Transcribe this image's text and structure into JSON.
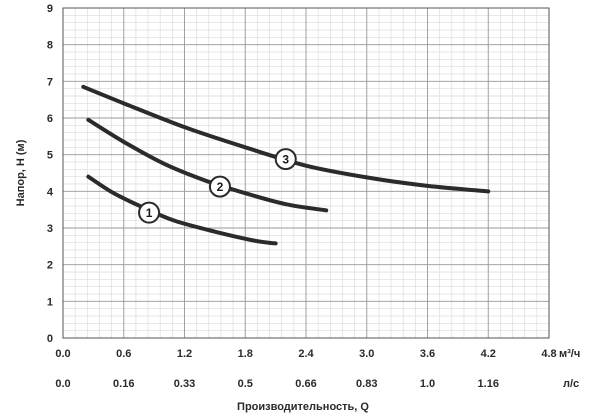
{
  "chart_data": {
    "type": "line",
    "ylabel": "Напор, H (м)",
    "xlabel": "Производительность, Q",
    "x_unit_primary": "м³/ч",
    "x_unit_secondary": "л/с",
    "xlim": [
      0,
      4.8
    ],
    "ylim": [
      0,
      9
    ],
    "x_ticks": [
      "0.0",
      "0.6",
      "1.2",
      "1.8",
      "2.4",
      "3.0",
      "3.6",
      "4.2",
      "4.8"
    ],
    "x_ticks_secondary": [
      {
        "x": 0,
        "label": "0.0"
      },
      {
        "x": 0.6,
        "label": "0.16"
      },
      {
        "x": 1.2,
        "label": "0.33"
      },
      {
        "x": 1.8,
        "label": "0.5"
      },
      {
        "x": 2.4,
        "label": "0.66"
      },
      {
        "x": 3.0,
        "label": "0.83"
      },
      {
        "x": 3.6,
        "label": "1.0"
      },
      {
        "x": 4.2,
        "label": "1.16"
      }
    ],
    "y_ticks": [
      "0",
      "1",
      "2",
      "3",
      "4",
      "5",
      "6",
      "7",
      "8",
      "9"
    ],
    "grid": true,
    "series": [
      {
        "name": "1",
        "x": [
          0.25,
          0.5,
          0.8,
          1.1,
          1.5,
          1.9,
          2.1
        ],
        "y": [
          4.4,
          3.95,
          3.55,
          3.2,
          2.9,
          2.65,
          2.58
        ],
        "marker_at": [
          0.85,
          3.42
        ]
      },
      {
        "name": "2",
        "x": [
          0.25,
          0.6,
          1.0,
          1.4,
          1.8,
          2.2,
          2.6
        ],
        "y": [
          5.95,
          5.35,
          4.75,
          4.3,
          3.95,
          3.65,
          3.48
        ],
        "marker_at": [
          1.55,
          4.13
        ]
      },
      {
        "name": "3",
        "x": [
          0.2,
          0.6,
          1.2,
          1.8,
          2.4,
          3.0,
          3.6,
          4.2
        ],
        "y": [
          6.85,
          6.4,
          5.75,
          5.2,
          4.7,
          4.38,
          4.15,
          4.0
        ]
      }
    ],
    "markers": [
      {
        "label": "1",
        "x": 0.85,
        "y": 3.42
      },
      {
        "label": "2",
        "x": 1.55,
        "y": 4.13
      },
      {
        "label": "3",
        "x": 2.2,
        "y": 4.88
      }
    ]
  }
}
